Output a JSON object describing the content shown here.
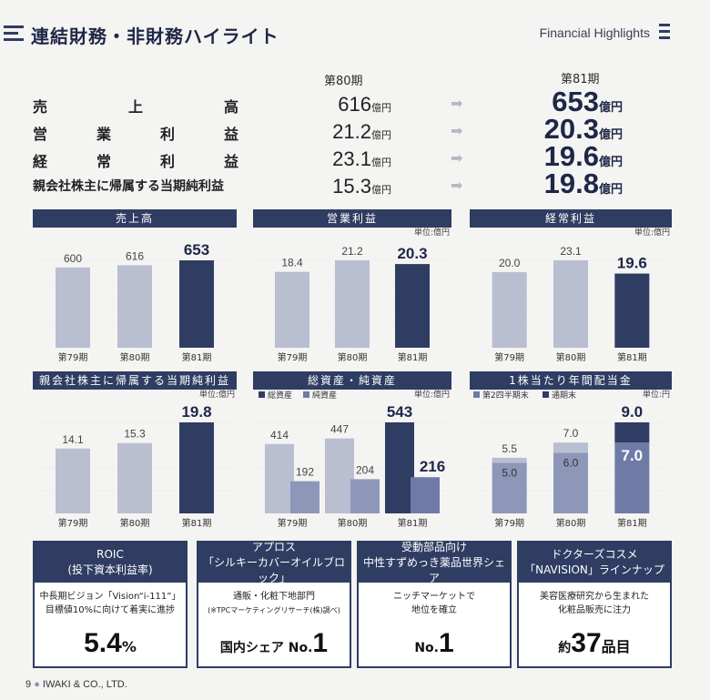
{
  "header": {
    "title": "連結財務・非財務ハイライト",
    "title_en": "Financial Highlights"
  },
  "summary": {
    "prev_period": "第80期",
    "cur_period": "第81期",
    "unit": "億円",
    "arrow": "➡",
    "rows": [
      {
        "label": "売　上　高",
        "prev": "616",
        "cur": "653"
      },
      {
        "label": "営　業　利　益",
        "prev": "21.2",
        "cur": "20.3"
      },
      {
        "label": "経　常　利　益",
        "prev": "23.1",
        "cur": "19.6"
      },
      {
        "label": "親会社株主に帰属する当期純利益",
        "prev": "15.3",
        "cur": "19.8"
      }
    ]
  },
  "colors": {
    "navy": "#2f3d63",
    "light": "#b9bed1",
    "mid": "#6f7ba6",
    "grid": "#eeeeec"
  },
  "chart_data": [
    {
      "type": "bar",
      "title": "売上高",
      "unit_label": "",
      "categories": [
        "第79期",
        "第80期",
        "第81期"
      ],
      "values": [
        600,
        616,
        653
      ],
      "labels": [
        "600",
        "616",
        "653"
      ],
      "ylim": [
        0,
        653
      ]
    },
    {
      "type": "bar",
      "title": "営業利益",
      "unit_label": "単位:億円",
      "categories": [
        "第79期",
        "第80期",
        "第81期"
      ],
      "values": [
        18.4,
        21.2,
        20.3
      ],
      "labels": [
        "18.4",
        "21.2",
        "20.3"
      ],
      "ylim": [
        0,
        21.2
      ]
    },
    {
      "type": "bar",
      "title": "経常利益",
      "unit_label": "単位:億円",
      "categories": [
        "第79期",
        "第80期",
        "第81期"
      ],
      "values": [
        20.0,
        23.1,
        19.6
      ],
      "labels": [
        "20.0",
        "23.1",
        "19.6"
      ],
      "ylim": [
        0,
        23.1
      ]
    },
    {
      "type": "bar",
      "title": "親会社株主に帰属する当期純利益",
      "unit_label": "単位:億円",
      "categories": [
        "第79期",
        "第80期",
        "第81期"
      ],
      "values": [
        14.1,
        15.3,
        19.8
      ],
      "labels": [
        "14.1",
        "15.3",
        "19.8"
      ],
      "ylim": [
        0,
        19.8
      ]
    },
    {
      "type": "grouped_bar",
      "title": "総資産・純資産",
      "unit_label": "単位:億円",
      "categories": [
        "第79期",
        "第80期",
        "第81期"
      ],
      "series": [
        {
          "name": "総資産",
          "values": [
            414,
            447,
            543
          ],
          "labels": [
            "414",
            "447",
            "543"
          ]
        },
        {
          "name": "純資産",
          "values": [
            192,
            204,
            216
          ],
          "labels": [
            "192",
            "204",
            "216"
          ]
        }
      ],
      "ylim": [
        0,
        543
      ]
    },
    {
      "type": "stacked_bar",
      "title": "1株当たり年間配当金",
      "unit_label": "単位:円",
      "categories": [
        "第79期",
        "第80期",
        "第81期"
      ],
      "series": [
        {
          "name": "第2四半期末",
          "values": [
            5.0,
            6.0,
            7.0
          ],
          "labels": [
            "5.0",
            "6.0",
            "7.0"
          ]
        },
        {
          "name": "通期末",
          "values": [
            0.5,
            1.0,
            2.0
          ]
        }
      ],
      "totals": [
        "5.5",
        "7.0",
        "9.0"
      ],
      "ylim": [
        0,
        9.0
      ]
    }
  ],
  "boxes": [
    {
      "head1": "ROIC",
      "head2": "(投下資本利益率)",
      "desc1": "中長期ビジョン「Vision“i-111”」",
      "desc2": "目標値10%に向けて着実に進捗",
      "desc3": "",
      "pre": "",
      "big": "5.4",
      "suf": "%"
    },
    {
      "head1": "アプロス",
      "head2": "「シルキーカバーオイルブロック」",
      "desc1": "通販・化粧下地部門",
      "desc2": "",
      "desc3": "(※TPCマーケティングリサーチ(株)調べ)",
      "pre": "国内シェア No.",
      "big": "1",
      "suf": ""
    },
    {
      "head1": "受動部品向け",
      "head2": "中性すずめっき薬品世界シェア",
      "desc1": "ニッチマーケットで",
      "desc2": "地位を確立",
      "desc3": "",
      "pre": "No.",
      "big": "1",
      "suf": ""
    },
    {
      "head1": "ドクターズコスメ",
      "head2": "「NAVISION」ラインナップ",
      "desc1": "美容医療研究から生まれた",
      "desc2": "化粧品販売に注力",
      "desc3": "",
      "pre": "約",
      "big": "37",
      "suf": "品目"
    }
  ],
  "footer": {
    "page": "9",
    "company": "IWAKI & CO., LTD."
  }
}
